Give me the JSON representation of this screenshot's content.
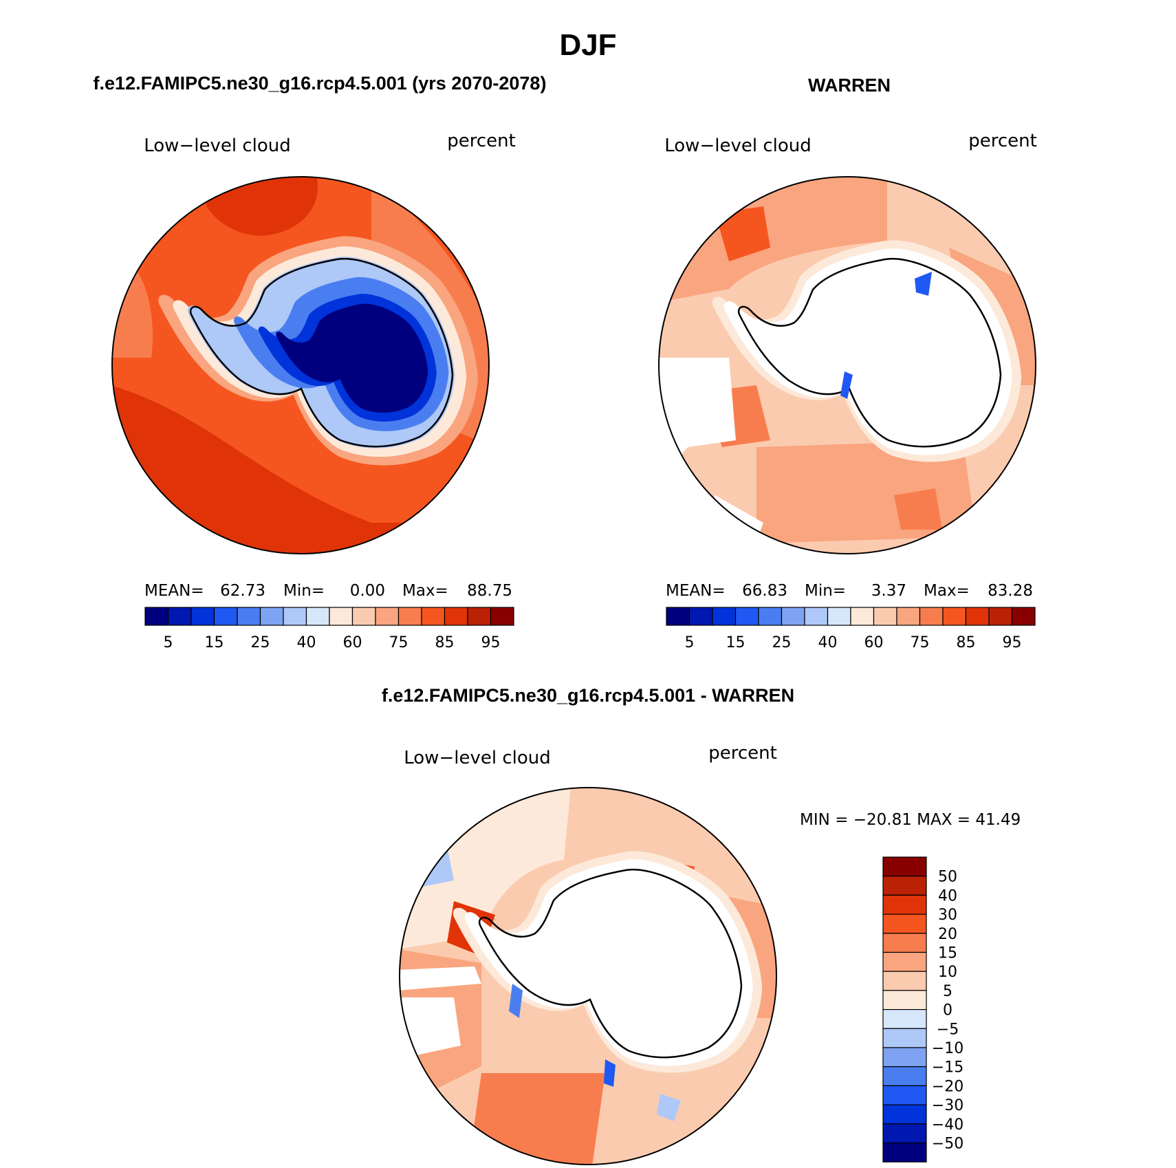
{
  "figure": {
    "title": "DJF",
    "panel_a_title": "f.e12.FAMIPC5.ne30_g16.rcp4.5.001 (yrs 2070-2078)",
    "panel_b_title": "WARREN",
    "panel_c_title": "f.e12.FAMIPC5.ne30_g16.rcp4.5.001 - WARREN"
  },
  "panel_a": {
    "variable": "Low−level cloud",
    "units": "percent",
    "mean_label": "MEAN=",
    "mean": "62.73",
    "min_label": "Min=",
    "min": "0.00",
    "max_label": "Max=",
    "max": "88.75"
  },
  "panel_b": {
    "variable": "Low−level cloud",
    "units": "percent",
    "mean_label": "MEAN=",
    "mean": "66.83",
    "min_label": "Min=",
    "min": "3.37",
    "max_label": "Max=",
    "max": "83.28"
  },
  "panel_c": {
    "variable": "Low−level cloud",
    "units": "percent",
    "minmax": "MIN = −20.81 MAX =   41.49"
  },
  "colorbar_abs": {
    "colors": [
      "#00007f",
      "#0018b0",
      "#0033d9",
      "#1f58f2",
      "#4a7ef0",
      "#7fa3f3",
      "#aec8f8",
      "#d6e6fb",
      "#fde9d9",
      "#fbcbb0",
      "#f9a57f",
      "#f87d4e",
      "#f5561f",
      "#e03408",
      "#bb2104",
      "#880000"
    ],
    "tick_labels": [
      "5",
      "15",
      "25",
      "40",
      "60",
      "75",
      "85",
      "95"
    ]
  },
  "colorbar_diff": {
    "colors_top_to_bottom": [
      "#880000",
      "#bb2104",
      "#e03408",
      "#f5561f",
      "#f87d4e",
      "#f9a57f",
      "#fbcbb0",
      "#fde9d9",
      "#d6e6fb",
      "#aec8f8",
      "#7fa3f3",
      "#4a7ef0",
      "#1f58f2",
      "#0033d9",
      "#0018b0",
      "#00007f"
    ],
    "tick_labels": [
      "50",
      "40",
      "30",
      "20",
      "15",
      "10",
      "5",
      "0",
      "−5",
      "−10",
      "−15",
      "−20",
      "−30",
      "−40",
      "−50"
    ]
  }
}
